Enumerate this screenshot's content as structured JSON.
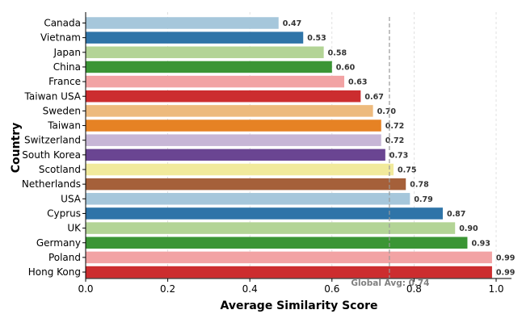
{
  "chart_data": {
    "type": "bar",
    "orientation": "horizontal",
    "xlabel": "Average Similarity Score",
    "ylabel": "Country",
    "xlim": [
      0.0,
      1.0
    ],
    "xticks": [
      "0.0",
      "0.2",
      "0.4",
      "0.6",
      "0.8",
      "1.0"
    ],
    "grid": "x-dashed",
    "categories": [
      "Canada",
      "Vietnam",
      "Japan",
      "China",
      "France",
      "Taiwan USA",
      "Sweden",
      "Taiwan",
      "Switzerland",
      "South Korea",
      "Scotland",
      "Netherlands",
      "USA",
      "Cyprus",
      "UK",
      "Germany",
      "Poland",
      "Hong Kong"
    ],
    "values": [
      0.47,
      0.53,
      0.58,
      0.6,
      0.63,
      0.67,
      0.7,
      0.72,
      0.72,
      0.73,
      0.75,
      0.78,
      0.79,
      0.87,
      0.9,
      0.93,
      0.99,
      0.99
    ],
    "value_labels": [
      "0.47",
      "0.53",
      "0.58",
      "0.60",
      "0.63",
      "0.67",
      "0.70",
      "0.72",
      "0.72",
      "0.73",
      "0.75",
      "0.78",
      "0.79",
      "0.87",
      "0.90",
      "0.93",
      "0.99",
      "0.99"
    ],
    "colors": [
      "#a6c7db",
      "#2f74a8",
      "#b3d496",
      "#3b9535",
      "#f2a3a4",
      "#cc2d2f",
      "#edba7d",
      "#e68224",
      "#c7b6d6",
      "#6a4592",
      "#f1ea9c",
      "#a5603a",
      "#a6c7db",
      "#2f74a8",
      "#b3d496",
      "#3b9535",
      "#f2a3a4",
      "#cc2d2f"
    ],
    "reference_line": {
      "value": 0.74,
      "label": "Global Avg: 0.74",
      "color": "#999999",
      "style": "dashed"
    }
  }
}
